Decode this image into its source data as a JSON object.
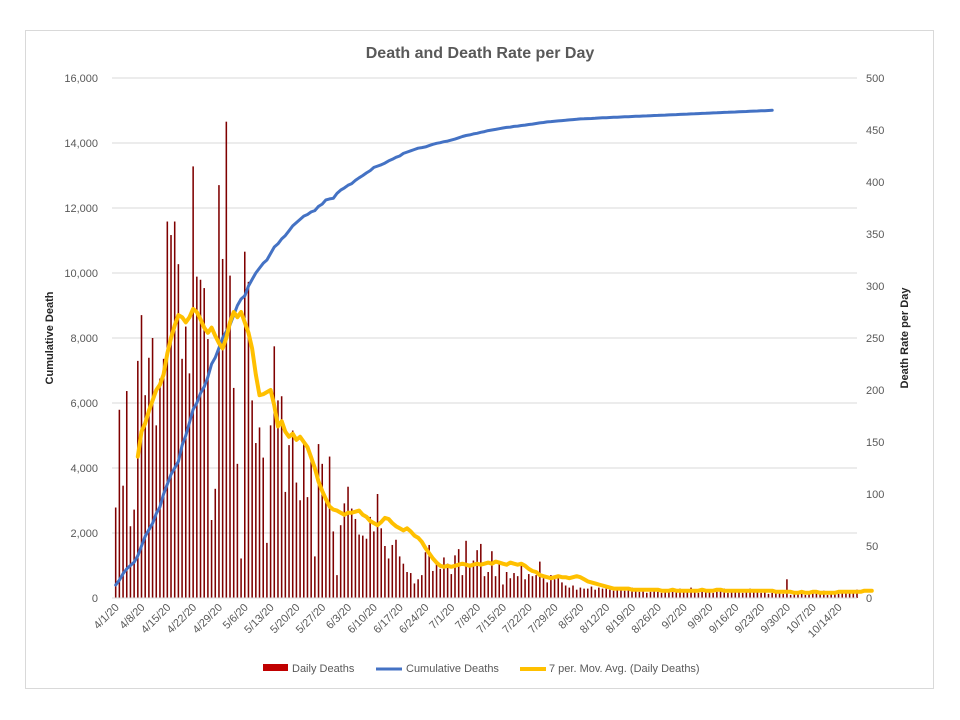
{
  "chart_data": {
    "type": "bar+line",
    "title": "Death and Death Rate per Day",
    "ylabel_left": "Cumulative Death",
    "ylabel_right": "Death Rate per Day",
    "ylim_left": [
      0,
      16000
    ],
    "ylim_right": [
      0,
      500
    ],
    "yticks_left": [
      "0",
      "2,000",
      "4,000",
      "6,000",
      "8,000",
      "10,000",
      "12,000",
      "14,000",
      "16,000"
    ],
    "yticks_right": [
      "0",
      "50",
      "100",
      "150",
      "200",
      "250",
      "300",
      "350",
      "400",
      "450",
      "500"
    ],
    "xticks": [
      {
        "day": 0,
        "label": "4/1/20"
      },
      {
        "day": 7,
        "label": "4/8/20"
      },
      {
        "day": 14,
        "label": "4/15/20"
      },
      {
        "day": 21,
        "label": "4/22/20"
      },
      {
        "day": 28,
        "label": "4/29/20"
      },
      {
        "day": 35,
        "label": "5/6/20"
      },
      {
        "day": 42,
        "label": "5/13/20"
      },
      {
        "day": 49,
        "label": "5/20/20"
      },
      {
        "day": 56,
        "label": "5/27/20"
      },
      {
        "day": 63,
        "label": "6/3/20"
      },
      {
        "day": 70,
        "label": "6/10/20"
      },
      {
        "day": 77,
        "label": "6/17/20"
      },
      {
        "day": 84,
        "label": "6/24/20"
      },
      {
        "day": 91,
        "label": "7/1/20"
      },
      {
        "day": 98,
        "label": "7/8/20"
      },
      {
        "day": 105,
        "label": "7/15/20"
      },
      {
        "day": 112,
        "label": "7/22/20"
      },
      {
        "day": 119,
        "label": "7/29/20"
      },
      {
        "day": 126,
        "label": "8/5/20"
      },
      {
        "day": 133,
        "label": "8/12/20"
      },
      {
        "day": 140,
        "label": "8/19/20"
      },
      {
        "day": 147,
        "label": "8/26/20"
      },
      {
        "day": 154,
        "label": "9/2/20"
      },
      {
        "day": 161,
        "label": "9/9/20"
      },
      {
        "day": 168,
        "label": "9/16/20"
      },
      {
        "day": 175,
        "label": "9/23/20"
      },
      {
        "day": 182,
        "label": "9/30/20"
      },
      {
        "day": 189,
        "label": "10/7/20"
      },
      {
        "day": 196,
        "label": "10/14/20"
      }
    ],
    "x_domain": [
      -1,
      201
    ],
    "legend_position": "bottom",
    "series": [
      {
        "name": "Daily Deaths",
        "kind": "bar",
        "axis": "right",
        "color": "#7f0000",
        "legend_color": "#c00000",
        "values": [
          87,
          181,
          108,
          199,
          69,
          85,
          228,
          272,
          195,
          231,
          250,
          166,
          211,
          230,
          362,
          349,
          362,
          321,
          230,
          261,
          216,
          415,
          309,
          306,
          298,
          249,
          75,
          105,
          397,
          326,
          458,
          310,
          202,
          129,
          38,
          333,
          304,
          190,
          149,
          164,
          135,
          53,
          166,
          242,
          190,
          194,
          102,
          147,
          161,
          111,
          94,
          152,
          97,
          135,
          40,
          148,
          129,
          94,
          136,
          64,
          22,
          70,
          91,
          107,
          86,
          76,
          61,
          60,
          57,
          78,
          64,
          100,
          67,
          50,
          38,
          51,
          56,
          40,
          33,
          25,
          24,
          14,
          18,
          22,
          44,
          51,
          26,
          36,
          28,
          39,
          33,
          23,
          41,
          47,
          22,
          55,
          33,
          36,
          46,
          52,
          21,
          25,
          45,
          21,
          33,
          13,
          25,
          19,
          24,
          21,
          32,
          18,
          23,
          21,
          22,
          35,
          19,
          15,
          22,
          18,
          21,
          15,
          12,
          10,
          12,
          8,
          10,
          9,
          9,
          11,
          8,
          10,
          9,
          9,
          8,
          7,
          9,
          8,
          7,
          8,
          10,
          7,
          6,
          7,
          5,
          6,
          9,
          6,
          5,
          8,
          7,
          6,
          8,
          9,
          7,
          6,
          10,
          7,
          5,
          6,
          8,
          7,
          5,
          6,
          7,
          9,
          5,
          6,
          8,
          7,
          5,
          6,
          9,
          7,
          8,
          5,
          6,
          4,
          5,
          7,
          6,
          4,
          18,
          3,
          5,
          4,
          6,
          3,
          4,
          5,
          6,
          4,
          7,
          3,
          5,
          6,
          4,
          7,
          5,
          6,
          6,
          8
        ]
      },
      {
        "name": "Cumulative Deaths",
        "kind": "line",
        "axis": "left",
        "color": "#4472c4",
        "values": [
          400,
          550,
          750,
          900,
          1000,
          1100,
          1300,
          1600,
          1900,
          2100,
          2300,
          2600,
          2800,
          3200,
          3500,
          3800,
          4000,
          4200,
          4700,
          5000,
          5400,
          5800,
          6000,
          6300,
          6500,
          6800,
          7200,
          7400,
          7700,
          8000,
          8200,
          8400,
          8700,
          9000,
          9200,
          9300,
          9600,
          9800,
          10000,
          10150,
          10300,
          10400,
          10600,
          10800,
          10900,
          11050,
          11150,
          11300,
          11450,
          11550,
          11650,
          11750,
          11800,
          11880,
          11920,
          12050,
          12120,
          12250,
          12280,
          12300,
          12450,
          12550,
          12620,
          12700,
          12750,
          12850,
          12930,
          13000,
          13080,
          13150,
          13250,
          13290,
          13330,
          13380,
          13450,
          13500,
          13560,
          13600,
          13680,
          13720,
          13760,
          13800,
          13840,
          13860,
          13880,
          13920,
          13960,
          13990,
          14010,
          14040,
          14060,
          14090,
          14120,
          14160,
          14200,
          14230,
          14250,
          14280,
          14300,
          14330,
          14350,
          14380,
          14400,
          14420,
          14440,
          14460,
          14480,
          14490,
          14510,
          14520,
          14540,
          14550,
          14570,
          14580,
          14600,
          14620,
          14630,
          14650,
          14660,
          14670,
          14680,
          14690,
          14700,
          14710,
          14720,
          14730,
          14740,
          14745,
          14750,
          14755,
          14760,
          14770,
          14775,
          14780,
          14785,
          14790,
          14795,
          14800,
          14805,
          14810,
          14815,
          14820,
          14825,
          14830,
          14835,
          14840,
          14845,
          14850,
          14855,
          14860,
          14865,
          14870,
          14875,
          14880,
          14885,
          14890,
          14895,
          14900,
          14905,
          14910,
          14915,
          14920,
          14925,
          14930,
          14935,
          14940,
          14945,
          14950,
          14955,
          14960,
          14965,
          14970,
          14975,
          14980,
          14985,
          14990,
          14995,
          15000,
          15005
        ]
      },
      {
        "name": "7 per. Mov. Avg. (Daily Deaths)",
        "kind": "line",
        "axis": "right",
        "color": "#ffc000",
        "start_day": 6,
        "values": [
          136,
          160,
          168,
          180,
          190,
          200,
          205,
          215,
          235,
          250,
          262,
          272,
          270,
          265,
          270,
          278,
          275,
          268,
          260,
          255,
          260,
          252,
          245,
          240,
          250,
          265,
          275,
          270,
          275,
          265,
          255,
          240,
          215,
          195,
          196,
          198,
          200,
          185,
          165,
          170,
          160,
          155,
          158,
          152,
          155,
          150,
          145,
          135,
          125,
          112,
          103,
          95,
          88,
          85,
          84,
          82,
          80,
          82,
          82,
          83,
          84,
          80,
          78,
          74,
          72,
          70,
          73,
          77,
          76,
          72,
          69,
          67,
          65,
          67,
          64,
          60,
          58,
          54,
          48,
          43,
          38,
          34,
          31,
          30,
          31,
          30,
          31,
          32,
          33,
          32,
          31,
          32,
          33,
          32,
          33,
          34,
          33,
          35,
          34,
          33,
          32,
          34,
          33,
          32,
          33,
          31,
          28,
          26,
          25,
          22,
          21,
          20,
          19,
          20,
          21,
          20,
          20,
          19,
          20,
          21,
          20,
          18,
          16,
          15,
          14,
          13,
          12,
          11,
          10,
          9,
          9,
          9,
          9,
          9,
          8,
          8,
          8,
          8,
          8,
          8,
          8,
          8,
          7,
          7,
          7,
          8,
          7,
          7,
          7,
          7,
          7,
          7,
          7,
          8,
          7,
          7,
          7,
          8,
          8,
          7,
          7,
          7,
          7,
          7,
          7,
          7,
          7,
          7,
          7,
          7,
          7,
          7,
          7,
          6,
          6,
          6,
          6,
          6,
          5,
          5,
          6,
          5,
          5,
          6,
          6,
          5,
          5,
          5,
          5,
          5,
          6,
          6,
          6,
          6,
          6,
          6,
          6,
          7,
          7,
          7
        ]
      }
    ]
  }
}
